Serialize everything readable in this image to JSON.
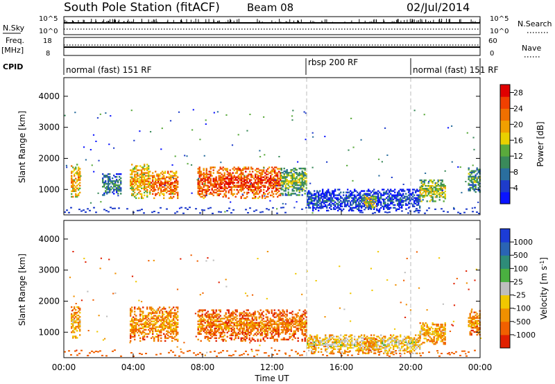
{
  "header": {
    "station": "South Pole Station (fitACF)",
    "beam": "Beam 08",
    "date": "02/Jul/2014"
  },
  "top_panels": {
    "nsky_label": "N.Sky",
    "nsky_ticks": [
      "10^5",
      "10^0"
    ],
    "nsearch_label": "N.Search",
    "nsearch_ticks": [
      "10^5",
      "10^0"
    ],
    "freq_label": "Freq.",
    "freq_unit": "[MHz]",
    "freq_ticks": [
      "18",
      "8"
    ],
    "nave_label": "Nave",
    "nave_ticks": [
      "60",
      "0"
    ],
    "cpid_label": "CPID",
    "cpid_segments": [
      {
        "label": "normal (fast) 151 RF",
        "start_hour": 0,
        "end_hour": 14
      },
      {
        "label": "rbsp 200 RF",
        "start_hour": 14,
        "end_hour": 20
      },
      {
        "label": "normal (fast) 151 RF",
        "start_hour": 20,
        "end_hour": 24
      }
    ]
  },
  "axes": {
    "ylabel": "Slant Range [km]",
    "xlabel": "Time UT",
    "y_ticks": [
      "1000",
      "2000",
      "3000",
      "4000"
    ],
    "x_ticks": [
      "00:00",
      "04:00",
      "08:00",
      "12:00",
      "16:00",
      "20:00",
      "00:00"
    ]
  },
  "power_colorbar": {
    "label": "Power [dB]",
    "ticks": [
      "4",
      "8",
      "12",
      "16",
      "20",
      "24",
      "28"
    ],
    "colors": [
      "#0a14ff",
      "#1e3ccb",
      "#2a6e9e",
      "#3a8a5a",
      "#5aaa3c",
      "#e8d000",
      "#f0a000",
      "#f07000",
      "#f04000",
      "#e00000"
    ]
  },
  "velocity_colorbar": {
    "label": "Velocity [m s",
    "label_sup": "-1",
    "label_end": "]",
    "ticks": [
      "1000",
      "500",
      "100",
      "25",
      "-25",
      "-100",
      "-500",
      "-1000"
    ],
    "colors": [
      "#1c3cd6",
      "#2a64b4",
      "#2e8c78",
      "#4ab040",
      "#bebebe",
      "#f0c800",
      "#f09000",
      "#f06000",
      "#e02000"
    ]
  },
  "chart_data": {
    "type": "heatmap",
    "title": "South Pole Station (fitACF)",
    "xlabel": "Time UT",
    "ylabel": "Slant Range [km]",
    "xlim": [
      0,
      24
    ],
    "ylim": [
      180,
      4600
    ],
    "grid": false,
    "panels": [
      {
        "name": "Power",
        "unit": "dB",
        "scale": [
          0,
          30
        ],
        "echo_regions": [
          {
            "t_start": 0.4,
            "t_end": 0.9,
            "r_min": 700,
            "r_max": 1800,
            "value": 20
          },
          {
            "t_start": 2.2,
            "t_end": 3.3,
            "r_min": 800,
            "r_max": 1500,
            "value": 10
          },
          {
            "t_start": 3.8,
            "t_end": 5.0,
            "r_min": 700,
            "r_max": 1800,
            "value": 20
          },
          {
            "t_start": 5.0,
            "t_end": 6.6,
            "r_min": 700,
            "r_max": 1600,
            "value": 24
          },
          {
            "t_start": 7.7,
            "t_end": 10.2,
            "r_min": 700,
            "r_max": 1700,
            "value": 26
          },
          {
            "t_start": 10.2,
            "t_end": 12.5,
            "r_min": 700,
            "r_max": 1700,
            "value": 26
          },
          {
            "t_start": 12.5,
            "t_end": 14.0,
            "r_min": 800,
            "r_max": 1700,
            "value": 14
          },
          {
            "t_start": 14.0,
            "t_end": 20.5,
            "r_min": 300,
            "r_max": 1000,
            "value": 6
          },
          {
            "t_start": 17.3,
            "t_end": 18.0,
            "r_min": 400,
            "r_max": 800,
            "value": 18
          },
          {
            "t_start": 20.5,
            "t_end": 22.0,
            "r_min": 600,
            "r_max": 1300,
            "value": 16
          },
          {
            "t_start": 23.3,
            "t_end": 24.0,
            "r_min": 900,
            "r_max": 1700,
            "value": 12
          }
        ]
      },
      {
        "name": "Velocity",
        "unit": "m s-1",
        "scale": [
          -1000,
          1000
        ],
        "echo_regions": [
          {
            "t_start": 0.4,
            "t_end": 0.9,
            "r_min": 800,
            "r_max": 1800,
            "value": -300
          },
          {
            "t_start": 3.8,
            "t_end": 6.6,
            "r_min": 700,
            "r_max": 1800,
            "value": -400
          },
          {
            "t_start": 7.7,
            "t_end": 14.0,
            "r_min": 700,
            "r_max": 1700,
            "value": -500
          },
          {
            "t_start": 14.0,
            "t_end": 20.5,
            "r_min": 300,
            "r_max": 900,
            "value": -100
          },
          {
            "t_start": 17.3,
            "t_end": 18.0,
            "r_min": 400,
            "r_max": 800,
            "value": -400
          },
          {
            "t_start": 20.5,
            "t_end": 22.0,
            "r_min": 600,
            "r_max": 1300,
            "value": -300
          },
          {
            "t_start": 23.3,
            "t_end": 24.0,
            "r_min": 900,
            "r_max": 1700,
            "value": -400
          }
        ]
      }
    ],
    "mode_changes_hour": [
      14,
      20
    ]
  }
}
